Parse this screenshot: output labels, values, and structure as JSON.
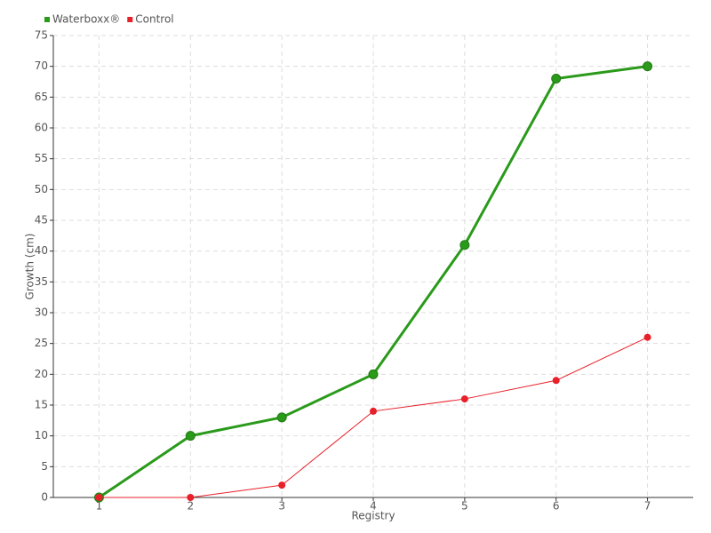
{
  "chart_data": {
    "type": "line",
    "x": [
      1,
      2,
      3,
      4,
      5,
      6,
      7
    ],
    "series": [
      {
        "name": "Waterboxx®",
        "color": "#2a9a1a",
        "values": [
          0,
          10,
          13,
          20,
          41,
          68,
          70
        ]
      },
      {
        "name": "Control",
        "color": "#e8202a",
        "values": [
          0,
          0,
          2,
          14,
          16,
          19,
          26
        ]
      }
    ],
    "xlabel": "Registry",
    "ylabel": "Growth (cm)",
    "xlim": [
      0.5,
      7.5
    ],
    "xticks": [
      1,
      2,
      3,
      4,
      5,
      6,
      7
    ],
    "ylim": [
      0,
      75
    ],
    "yticks": [
      0,
      5,
      10,
      15,
      20,
      25,
      30,
      35,
      40,
      45,
      50,
      55,
      60,
      65,
      70,
      75
    ],
    "grid": true,
    "legend": "top-left"
  }
}
